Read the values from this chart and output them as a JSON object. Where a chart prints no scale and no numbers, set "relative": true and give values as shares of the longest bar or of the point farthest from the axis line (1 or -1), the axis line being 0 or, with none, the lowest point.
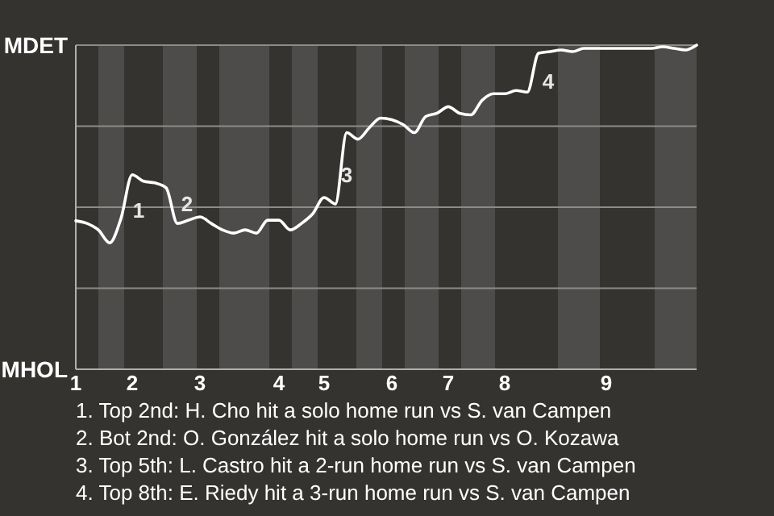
{
  "chart_data": {
    "type": "line",
    "relative": true,
    "categories": [
      "1",
      null,
      null,
      null,
      null,
      "2",
      null,
      null,
      null,
      null,
      null,
      "3",
      null,
      null,
      null,
      null,
      null,
      null,
      "4",
      null,
      null,
      null,
      "5",
      null,
      null,
      null,
      null,
      null,
      "6",
      null,
      null,
      null,
      null,
      "7",
      null,
      null,
      null,
      null,
      "8",
      null,
      null,
      null,
      null,
      null,
      null,
      null,
      null,
      "9",
      null,
      null,
      null,
      null,
      null,
      null,
      null,
      null
    ],
    "values": [
      0.458,
      0.45,
      0.43,
      0.39,
      0.465,
      0.6,
      0.58,
      0.575,
      0.56,
      0.45,
      0.46,
      0.47,
      0.45,
      0.43,
      0.42,
      0.43,
      0.42,
      0.46,
      0.46,
      0.43,
      0.45,
      0.48,
      0.53,
      0.51,
      0.73,
      0.71,
      0.745,
      0.775,
      0.77,
      0.755,
      0.73,
      0.78,
      0.79,
      0.81,
      0.79,
      0.785,
      0.83,
      0.85,
      0.85,
      0.86,
      0.855,
      0.975,
      0.98,
      0.985,
      0.98,
      0.99,
      0.99,
      0.99,
      0.99,
      0.99,
      0.99,
      0.99,
      0.995,
      0.99,
      0.985,
      1
    ],
    "color": "#ffffff",
    "marker": "none",
    "line_style": "solid",
    "ref_lines": [
      {
        "axis": "y",
        "value": 0.25,
        "color": "#8c8b88"
      },
      {
        "axis": "y",
        "value": 0.5,
        "color": "#8c8b88"
      },
      {
        "axis": "y",
        "value": 0.75,
        "color": "#8c8b88"
      },
      {
        "axis": "y",
        "value": 1,
        "color": "#8c8b88"
      }
    ],
    "annotations": [
      "MDET",
      "MHOL",
      "1",
      "2",
      "3",
      "4",
      "1. Top 2nd: H. Cho hit a solo home run vs S. van Campen",
      "2. Bot 2nd: O. González hit a solo home run vs O. Kozawa",
      "3. Top 5th: L. Castro hit a 2-run home run vs S. van Campen",
      "4. Top 8th: E. Riedy hit a 3-run home run vs S. van Campen"
    ]
  }
}
